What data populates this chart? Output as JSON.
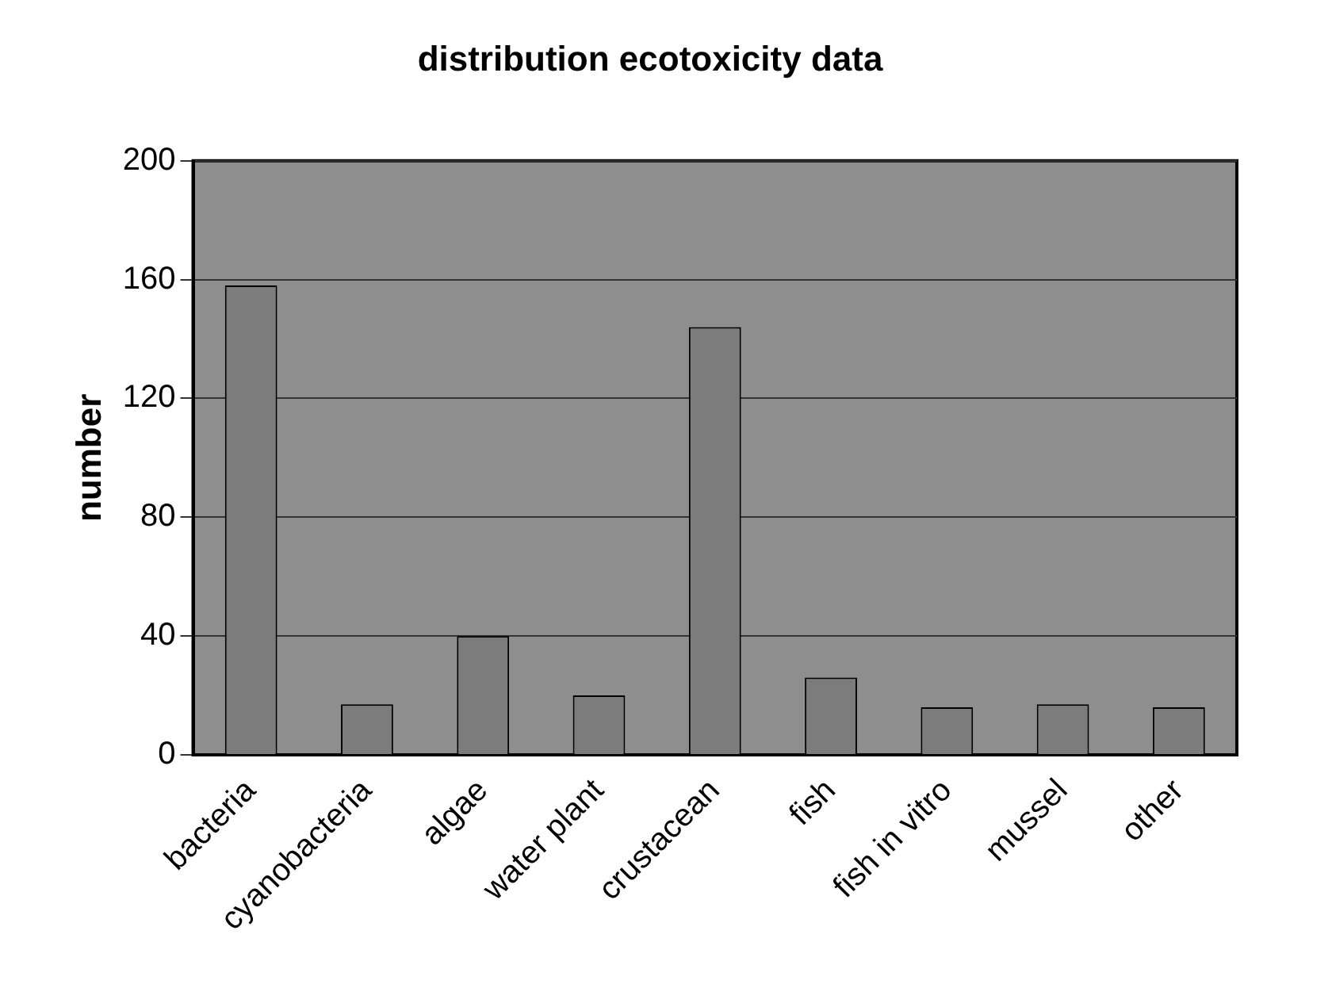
{
  "chart_data": {
    "type": "bar",
    "title": "distribution ecotoxicity data",
    "ylabel": "number",
    "categories": [
      "bacteria",
      "cyanobacteria",
      "algae",
      "water plant",
      "crustacean",
      "fish",
      "fish in vitro",
      "mussel",
      "other"
    ],
    "values": [
      158,
      17,
      40,
      20,
      144,
      26,
      16,
      17,
      16
    ],
    "color": "#7c7c7c",
    "ylim": [
      0,
      200
    ],
    "yticks": [
      0,
      40,
      80,
      120,
      160,
      200
    ],
    "grid": "y",
    "legend": false
  }
}
